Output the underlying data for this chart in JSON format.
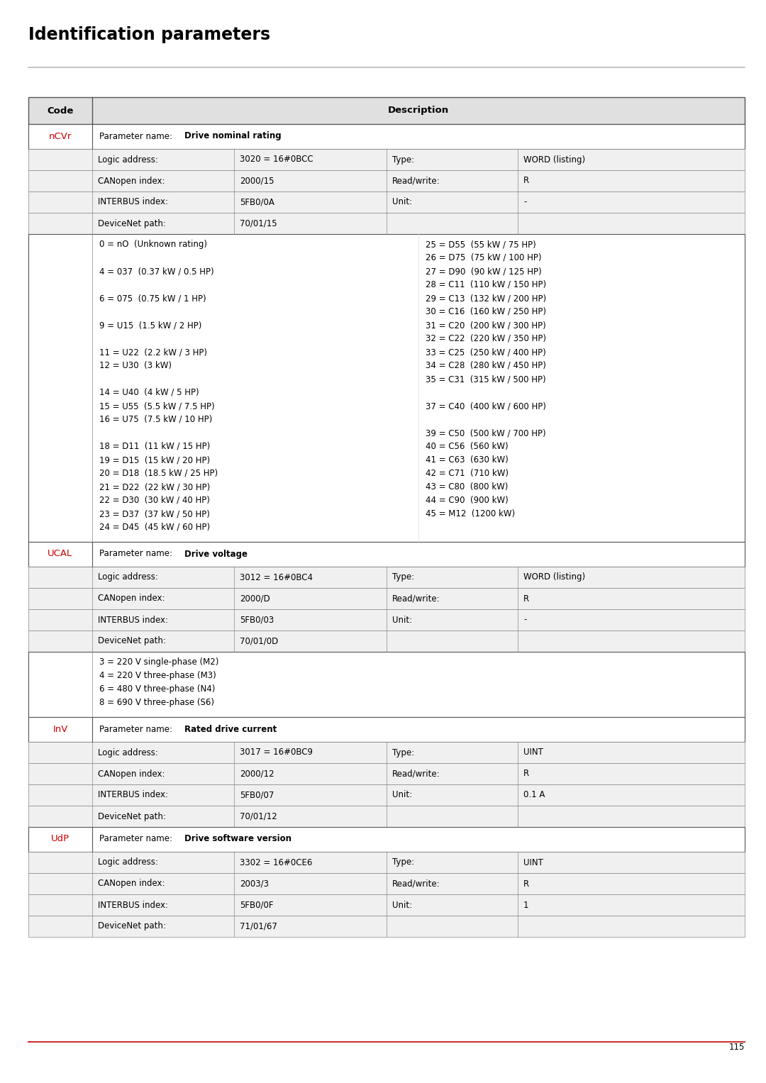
{
  "title": "Identification parameters",
  "page_number": "115",
  "bg_color": "#ffffff",
  "red_color": "#cc0000",
  "codes": [
    "nCVr",
    "UCAL",
    "InV",
    "UdP"
  ],
  "param_names": [
    "Drive nominal rating",
    "Drive voltage",
    "Rated drive current",
    "Drive software version"
  ],
  "ncvr_details": {
    "logic_address": "3020 = 16#0BCC",
    "canopen_index": "2000/15",
    "interbus_index": "5FB0/0A",
    "devicenet_path": "70/01/15",
    "type": "WORD (listing)",
    "readwrite": "R",
    "unit": "-"
  },
  "ucal_details": {
    "logic_address": "3012 = 16#0BC4",
    "canopen_index": "2000/D",
    "interbus_index": "5FB0/03",
    "devicenet_path": "70/01/0D",
    "type": "WORD (listing)",
    "readwrite": "R",
    "unit": "-"
  },
  "inv_details": {
    "logic_address": "3017 = 16#0BC9",
    "canopen_index": "2000/12",
    "interbus_index": "5FB0/07",
    "devicenet_path": "70/01/12",
    "type": "UINT",
    "readwrite": "R",
    "unit": "0.1 A"
  },
  "udp_details": {
    "logic_address": "3302 = 16#0CE6",
    "canopen_index": "2003/3",
    "interbus_index": "5FB0/0F",
    "devicenet_path": "71/01/67",
    "type": "UINT",
    "readwrite": "R",
    "unit": "1"
  },
  "ncvr_left_values": [
    "0 = nO  (Unknown rating)",
    "",
    "4 = 037  (0.37 kW / 0.5 HP)",
    "",
    "6 = 075  (0.75 kW / 1 HP)",
    "",
    "9 = U15  (1.5 kW / 2 HP)",
    "",
    "11 = U22  (2.2 kW / 3 HP)",
    "12 = U30  (3 kW)",
    "",
    "14 = U40  (4 kW / 5 HP)",
    "15 = U55  (5.5 kW / 7.5 HP)",
    "16 = U75  (7.5 kW / 10 HP)",
    "",
    "18 = D11  (11 kW / 15 HP)",
    "19 = D15  (15 kW / 20 HP)",
    "20 = D18  (18.5 kW / 25 HP)",
    "21 = D22  (22 kW / 30 HP)",
    "22 = D30  (30 kW / 40 HP)",
    "23 = D37  (37 kW / 50 HP)",
    "24 = D45  (45 kW / 60 HP)"
  ],
  "ncvr_right_values": [
    "25 = D55  (55 kW / 75 HP)",
    "26 = D75  (75 kW / 100 HP)",
    "27 = D90  (90 kW / 125 HP)",
    "28 = C11  (110 kW / 150 HP)",
    "29 = C13  (132 kW / 200 HP)",
    "30 = C16  (160 kW / 250 HP)",
    "31 = C20  (200 kW / 300 HP)",
    "32 = C22  (220 kW / 350 HP)",
    "33 = C25  (250 kW / 400 HP)",
    "34 = C28  (280 kW / 450 HP)",
    "35 = C31  (315 kW / 500 HP)",
    "",
    "37 = C40  (400 kW / 600 HP)",
    "",
    "39 = C50  (500 kW / 700 HP)",
    "40 = C56  (560 kW)",
    "41 = C63  (630 kW)",
    "42 = C71  (710 kW)",
    "43 = C80  (800 kW)",
    "44 = C90  (900 kW)",
    "45 = M12  (1200 kW)"
  ],
  "ucal_values": [
    "3 = 220 V single-phase (M2)",
    "4 = 220 V three-phase (M3)",
    "6 = 480 V three-phase (N4)",
    "8 = 690 V three-phase (S6)"
  ]
}
